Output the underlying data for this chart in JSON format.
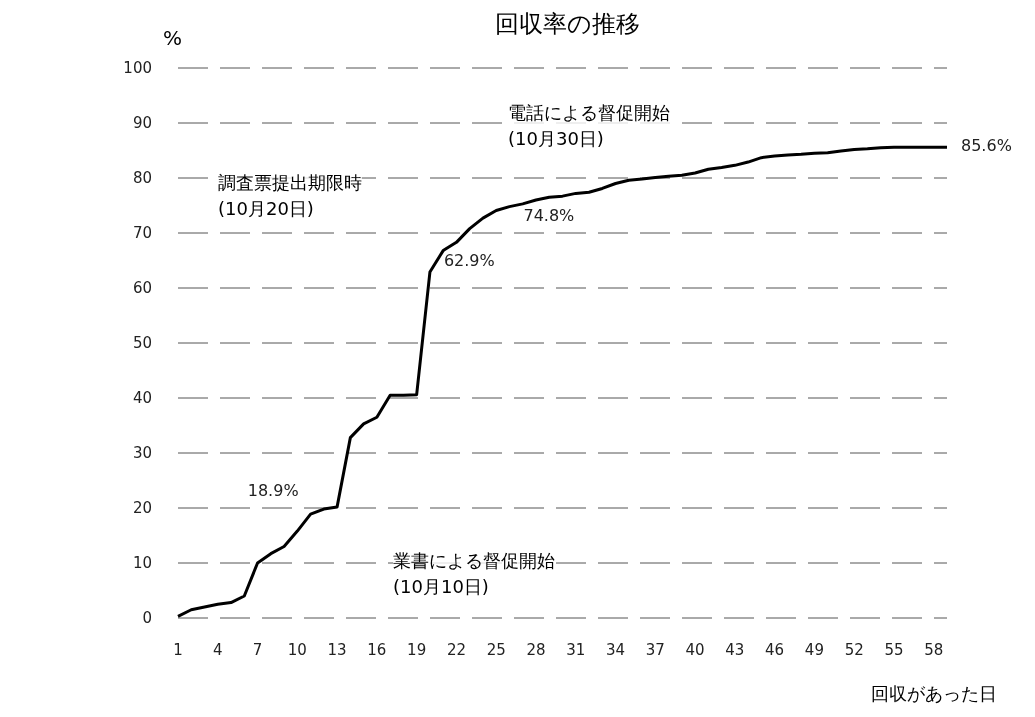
{
  "chart_data": {
    "type": "line",
    "title": "回収率の推移",
    "ylabel": "%",
    "xlabel": "回収があった日",
    "categories": [
      "1",
      null,
      null,
      "4",
      null,
      null,
      "7",
      null,
      null,
      "10",
      null,
      null,
      "13",
      null,
      null,
      "16",
      null,
      null,
      "19",
      null,
      null,
      "22",
      null,
      null,
      "25",
      null,
      null,
      "28",
      null,
      null,
      "31",
      null,
      null,
      "34",
      null,
      null,
      "37",
      null,
      null,
      "40",
      null,
      null,
      "43",
      null,
      null,
      "46",
      null,
      null,
      "49",
      null,
      null,
      "52",
      null,
      null,
      "55",
      null,
      null,
      "58",
      null
    ],
    "series": [
      {
        "color": "#000000",
        "values": [
          0.3,
          1.5,
          2,
          2.5,
          2.8,
          4,
          10,
          11.7,
          13,
          15.8,
          18.9,
          19.8,
          20.2,
          32.8,
          35.3,
          36.5,
          40.5,
          40.5,
          40.6,
          62.9,
          66.8,
          68.3,
          70.8,
          72.7,
          74.1,
          74.8,
          75.3,
          76,
          76.5,
          76.7,
          77.2,
          77.4,
          78.1,
          79,
          79.6,
          79.8,
          80.1,
          80.3,
          80.5,
          80.9,
          81.6,
          81.9,
          82.3,
          82.9,
          83.7,
          84,
          84.2,
          84.3,
          84.5,
          84.6,
          84.9,
          85.2,
          85.3,
          85.5,
          85.6,
          85.6,
          85.6,
          85.6,
          85.6
        ],
        "value_labels": [
          null,
          null,
          null,
          null,
          null,
          null,
          null,
          null,
          null,
          null,
          "18.9%",
          null,
          null,
          null,
          null,
          null,
          null,
          null,
          null,
          "62.9%",
          null,
          null,
          null,
          null,
          null,
          "74.8%",
          null,
          null,
          null,
          null,
          null,
          null,
          null,
          null,
          null,
          null,
          null,
          null,
          null,
          null,
          null,
          null,
          null,
          null,
          null,
          null,
          null,
          null,
          null,
          null,
          null,
          null,
          null,
          null,
          null,
          null,
          null,
          null,
          "85.6%"
        ]
      }
    ],
    "ylim": [
      0,
      100
    ],
    "yticks": [
      0,
      10,
      20,
      30,
      40,
      50,
      60,
      70,
      80,
      90,
      100
    ],
    "grid": "y",
    "marker": "none",
    "line_style": "solid",
    "annotations": [
      "電話による督促開始\n(10月30日)",
      "調査票提出期限時\n(10月20日)",
      "業書による督促開始\n(10月10日)"
    ]
  }
}
